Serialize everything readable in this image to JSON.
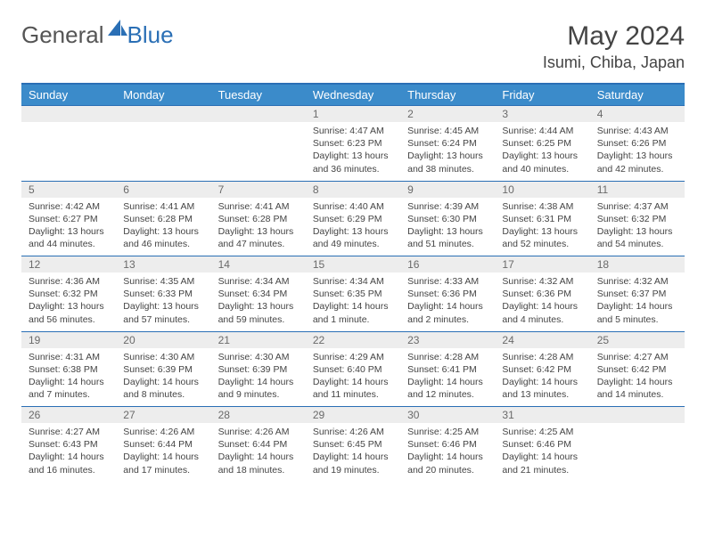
{
  "brand": {
    "part1": "General",
    "part2": "Blue"
  },
  "title": "May 2024",
  "location": "Isumi, Chiba, Japan",
  "colors": {
    "header_bg": "#3b8bca",
    "header_border": "#2a6fb5",
    "daynum_bg": "#ededed",
    "text": "#444444"
  },
  "weekdays": [
    "Sunday",
    "Monday",
    "Tuesday",
    "Wednesday",
    "Thursday",
    "Friday",
    "Saturday"
  ],
  "weeks": [
    [
      null,
      null,
      null,
      {
        "n": "1",
        "sr": "Sunrise: 4:47 AM",
        "ss": "Sunset: 6:23 PM",
        "d1": "Daylight: 13 hours",
        "d2": "and 36 minutes."
      },
      {
        "n": "2",
        "sr": "Sunrise: 4:45 AM",
        "ss": "Sunset: 6:24 PM",
        "d1": "Daylight: 13 hours",
        "d2": "and 38 minutes."
      },
      {
        "n": "3",
        "sr": "Sunrise: 4:44 AM",
        "ss": "Sunset: 6:25 PM",
        "d1": "Daylight: 13 hours",
        "d2": "and 40 minutes."
      },
      {
        "n": "4",
        "sr": "Sunrise: 4:43 AM",
        "ss": "Sunset: 6:26 PM",
        "d1": "Daylight: 13 hours",
        "d2": "and 42 minutes."
      }
    ],
    [
      {
        "n": "5",
        "sr": "Sunrise: 4:42 AM",
        "ss": "Sunset: 6:27 PM",
        "d1": "Daylight: 13 hours",
        "d2": "and 44 minutes."
      },
      {
        "n": "6",
        "sr": "Sunrise: 4:41 AM",
        "ss": "Sunset: 6:28 PM",
        "d1": "Daylight: 13 hours",
        "d2": "and 46 minutes."
      },
      {
        "n": "7",
        "sr": "Sunrise: 4:41 AM",
        "ss": "Sunset: 6:28 PM",
        "d1": "Daylight: 13 hours",
        "d2": "and 47 minutes."
      },
      {
        "n": "8",
        "sr": "Sunrise: 4:40 AM",
        "ss": "Sunset: 6:29 PM",
        "d1": "Daylight: 13 hours",
        "d2": "and 49 minutes."
      },
      {
        "n": "9",
        "sr": "Sunrise: 4:39 AM",
        "ss": "Sunset: 6:30 PM",
        "d1": "Daylight: 13 hours",
        "d2": "and 51 minutes."
      },
      {
        "n": "10",
        "sr": "Sunrise: 4:38 AM",
        "ss": "Sunset: 6:31 PM",
        "d1": "Daylight: 13 hours",
        "d2": "and 52 minutes."
      },
      {
        "n": "11",
        "sr": "Sunrise: 4:37 AM",
        "ss": "Sunset: 6:32 PM",
        "d1": "Daylight: 13 hours",
        "d2": "and 54 minutes."
      }
    ],
    [
      {
        "n": "12",
        "sr": "Sunrise: 4:36 AM",
        "ss": "Sunset: 6:32 PM",
        "d1": "Daylight: 13 hours",
        "d2": "and 56 minutes."
      },
      {
        "n": "13",
        "sr": "Sunrise: 4:35 AM",
        "ss": "Sunset: 6:33 PM",
        "d1": "Daylight: 13 hours",
        "d2": "and 57 minutes."
      },
      {
        "n": "14",
        "sr": "Sunrise: 4:34 AM",
        "ss": "Sunset: 6:34 PM",
        "d1": "Daylight: 13 hours",
        "d2": "and 59 minutes."
      },
      {
        "n": "15",
        "sr": "Sunrise: 4:34 AM",
        "ss": "Sunset: 6:35 PM",
        "d1": "Daylight: 14 hours",
        "d2": "and 1 minute."
      },
      {
        "n": "16",
        "sr": "Sunrise: 4:33 AM",
        "ss": "Sunset: 6:36 PM",
        "d1": "Daylight: 14 hours",
        "d2": "and 2 minutes."
      },
      {
        "n": "17",
        "sr": "Sunrise: 4:32 AM",
        "ss": "Sunset: 6:36 PM",
        "d1": "Daylight: 14 hours",
        "d2": "and 4 minutes."
      },
      {
        "n": "18",
        "sr": "Sunrise: 4:32 AM",
        "ss": "Sunset: 6:37 PM",
        "d1": "Daylight: 14 hours",
        "d2": "and 5 minutes."
      }
    ],
    [
      {
        "n": "19",
        "sr": "Sunrise: 4:31 AM",
        "ss": "Sunset: 6:38 PM",
        "d1": "Daylight: 14 hours",
        "d2": "and 7 minutes."
      },
      {
        "n": "20",
        "sr": "Sunrise: 4:30 AM",
        "ss": "Sunset: 6:39 PM",
        "d1": "Daylight: 14 hours",
        "d2": "and 8 minutes."
      },
      {
        "n": "21",
        "sr": "Sunrise: 4:30 AM",
        "ss": "Sunset: 6:39 PM",
        "d1": "Daylight: 14 hours",
        "d2": "and 9 minutes."
      },
      {
        "n": "22",
        "sr": "Sunrise: 4:29 AM",
        "ss": "Sunset: 6:40 PM",
        "d1": "Daylight: 14 hours",
        "d2": "and 11 minutes."
      },
      {
        "n": "23",
        "sr": "Sunrise: 4:28 AM",
        "ss": "Sunset: 6:41 PM",
        "d1": "Daylight: 14 hours",
        "d2": "and 12 minutes."
      },
      {
        "n": "24",
        "sr": "Sunrise: 4:28 AM",
        "ss": "Sunset: 6:42 PM",
        "d1": "Daylight: 14 hours",
        "d2": "and 13 minutes."
      },
      {
        "n": "25",
        "sr": "Sunrise: 4:27 AM",
        "ss": "Sunset: 6:42 PM",
        "d1": "Daylight: 14 hours",
        "d2": "and 14 minutes."
      }
    ],
    [
      {
        "n": "26",
        "sr": "Sunrise: 4:27 AM",
        "ss": "Sunset: 6:43 PM",
        "d1": "Daylight: 14 hours",
        "d2": "and 16 minutes."
      },
      {
        "n": "27",
        "sr": "Sunrise: 4:26 AM",
        "ss": "Sunset: 6:44 PM",
        "d1": "Daylight: 14 hours",
        "d2": "and 17 minutes."
      },
      {
        "n": "28",
        "sr": "Sunrise: 4:26 AM",
        "ss": "Sunset: 6:44 PM",
        "d1": "Daylight: 14 hours",
        "d2": "and 18 minutes."
      },
      {
        "n": "29",
        "sr": "Sunrise: 4:26 AM",
        "ss": "Sunset: 6:45 PM",
        "d1": "Daylight: 14 hours",
        "d2": "and 19 minutes."
      },
      {
        "n": "30",
        "sr": "Sunrise: 4:25 AM",
        "ss": "Sunset: 6:46 PM",
        "d1": "Daylight: 14 hours",
        "d2": "and 20 minutes."
      },
      {
        "n": "31",
        "sr": "Sunrise: 4:25 AM",
        "ss": "Sunset: 6:46 PM",
        "d1": "Daylight: 14 hours",
        "d2": "and 21 minutes."
      },
      null
    ]
  ]
}
